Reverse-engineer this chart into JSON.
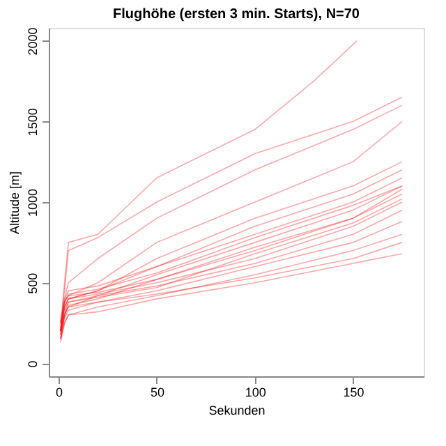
{
  "chart_data": {
    "type": "line",
    "title": "Flughöhe (ersten 3 min. Starts), N=70",
    "xlabel": "Sekunden",
    "ylabel": "Altitude [m]",
    "x": [
      1,
      3,
      5,
      20,
      50,
      100,
      150,
      175
    ],
    "series": [
      {
        "color": "#ff0000",
        "x": [
          1,
          3,
          5,
          20,
          50,
          100,
          130,
          152
        ],
        "values": [
          200,
          500,
          750,
          800,
          1150,
          1450,
          1750,
          2000
        ]
      },
      {
        "color": "#ff0000",
        "values": [
          250,
          450,
          700,
          780,
          1000,
          1300,
          1500,
          1650
        ]
      },
      {
        "color": "#ff0000",
        "values": [
          200,
          400,
          500,
          650,
          900,
          1200,
          1450,
          1600
        ]
      },
      {
        "color": "#ff0000",
        "values": [
          250,
          380,
          420,
          500,
          750,
          1000,
          1250,
          1500
        ]
      },
      {
        "color": "#ff0000",
        "values": [
          180,
          350,
          400,
          450,
          650,
          900,
          1100,
          1250
        ]
      },
      {
        "color": "#ff0000",
        "values": [
          200,
          350,
          400,
          450,
          600,
          800,
          1000,
          1150
        ]
      },
      {
        "color": "#ff0000",
        "values": [
          150,
          300,
          380,
          420,
          550,
          750,
          950,
          1100
        ]
      },
      {
        "color": "#ff0000",
        "values": [
          220,
          380,
          420,
          440,
          520,
          700,
          900,
          1050
        ]
      },
      {
        "color": "#ff0000",
        "values": [
          200,
          350,
          400,
          430,
          500,
          650,
          850,
          1000
        ]
      },
      {
        "color": "#ff0000",
        "values": [
          180,
          300,
          350,
          420,
          480,
          620,
          800,
          950
        ]
      },
      {
        "color": "#ff0000",
        "values": [
          150,
          280,
          330,
          380,
          450,
          600,
          750,
          880
        ]
      },
      {
        "color": "#ff0000",
        "values": [
          130,
          250,
          300,
          350,
          420,
          550,
          700,
          800
        ]
      },
      {
        "color": "#ff0000",
        "values": [
          200,
          300,
          350,
          380,
          430,
          530,
          650,
          750
        ]
      },
      {
        "color": "#ff0000",
        "values": [
          150,
          250,
          300,
          320,
          400,
          500,
          620,
          680
        ]
      },
      {
        "color": "#ff0000",
        "values": [
          250,
          400,
          450,
          480,
          600,
          850,
          1050,
          1200
        ]
      },
      {
        "color": "#ff0000",
        "values": [
          200,
          380,
          430,
          460,
          560,
          780,
          980,
          1100
        ]
      },
      {
        "color": "#ff0000",
        "values": [
          180,
          330,
          380,
          410,
          470,
          680,
          870,
          1020
        ]
      },
      {
        "color": "#ff0000",
        "values": [
          160,
          300,
          360,
          400,
          520,
          720,
          900,
          1080
        ]
      }
    ],
    "xlim": [
      -5,
      186
    ],
    "ylim": [
      -80,
      2080
    ],
    "xticks": [
      0,
      50,
      100,
      150
    ],
    "yticks": [
      0,
      500,
      1000,
      1500,
      2000
    ],
    "grid": false,
    "legend": false,
    "marker": "none",
    "line_style": "solid"
  }
}
